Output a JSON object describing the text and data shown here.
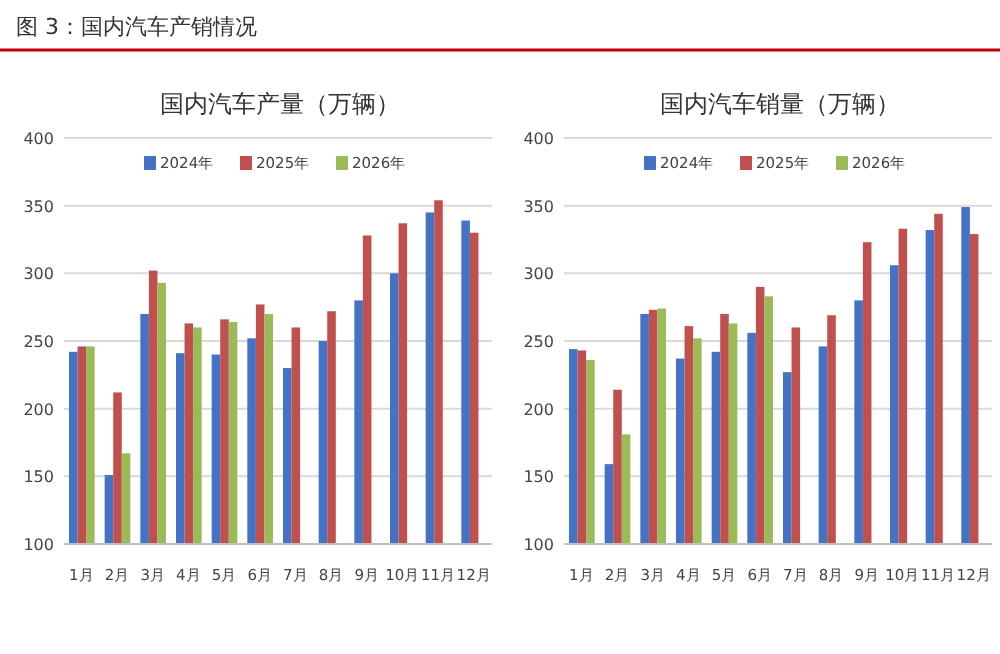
{
  "chart_data": [
    {
      "type": "other",
      "title": "图 3：国内汽车产销情况"
    },
    {
      "type": "bar",
      "title": "国内汽车产量（万辆）",
      "categories": [
        "1月",
        "2月",
        "3月",
        "4月",
        "5月",
        "6月",
        "7月",
        "8月",
        "9月",
        "10月",
        "11月",
        "12月"
      ],
      "ylim": [
        100,
        400
      ],
      "yticks": [
        100,
        150,
        200,
        250,
        300,
        350,
        400
      ],
      "grid": "y",
      "legend": "top",
      "series": [
        {
          "name": "2024年",
          "color": "#4472c4",
          "values": [
            242,
            151,
            270,
            241,
            240,
            252,
            230,
            250,
            280,
            300,
            345,
            339
          ]
        },
        {
          "name": "2025年",
          "color": "#c0504d",
          "values": [
            246,
            212,
            302,
            263,
            266,
            277,
            260,
            272,
            328,
            337,
            354,
            330
          ]
        },
        {
          "name": "2026年",
          "color": "#9bbb59",
          "values": [
            246,
            167,
            293,
            260,
            264,
            270,
            null,
            null,
            null,
            null,
            null,
            null
          ]
        }
      ]
    },
    {
      "type": "bar",
      "title": "国内汽车销量（万辆）",
      "categories": [
        "1月",
        "2月",
        "3月",
        "4月",
        "5月",
        "6月",
        "7月",
        "8月",
        "9月",
        "10月",
        "11月",
        "12月"
      ],
      "ylim": [
        100,
        400
      ],
      "yticks": [
        100,
        150,
        200,
        250,
        300,
        350,
        400
      ],
      "grid": "y",
      "legend": "top",
      "series": [
        {
          "name": "2024年",
          "color": "#4472c4",
          "values": [
            244,
            159,
            270,
            237,
            242,
            256,
            227,
            246,
            280,
            306,
            332,
            349
          ]
        },
        {
          "name": "2025年",
          "color": "#c0504d",
          "values": [
            243,
            214,
            273,
            261,
            270,
            290,
            260,
            269,
            323,
            333,
            344,
            329
          ]
        },
        {
          "name": "2026年",
          "color": "#9bbb59",
          "values": [
            236,
            181,
            274,
            252,
            263,
            283,
            null,
            null,
            null,
            null,
            null,
            null
          ]
        }
      ]
    }
  ]
}
